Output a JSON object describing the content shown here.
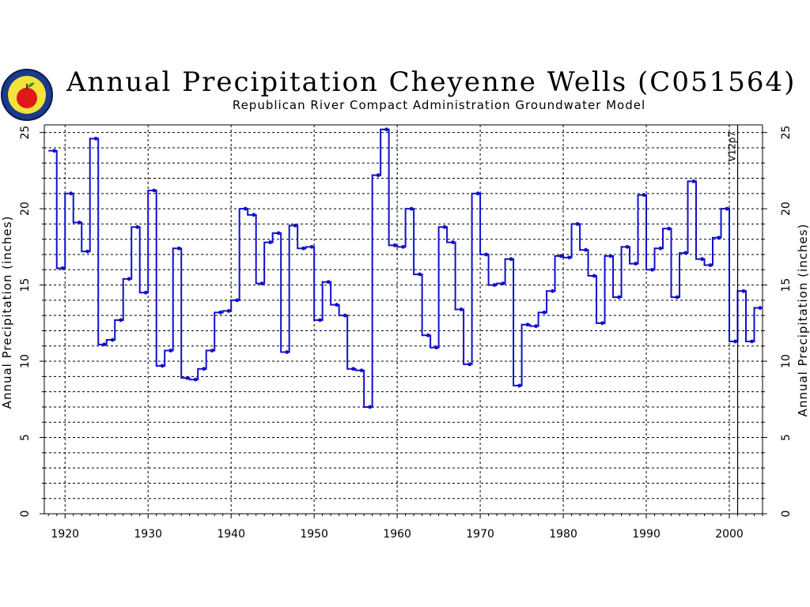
{
  "header": {
    "title": "Annual Precipitation Cheyenne Wells (C051564)",
    "subtitle": "Republican River Compact Administration Groundwater Model"
  },
  "colors": {
    "series": "#1010cc",
    "grid": "#000000",
    "axis": "#000000"
  },
  "chart_data": {
    "type": "line",
    "step": true,
    "title": "Annual Precipitation Cheyenne Wells (C051564)",
    "subtitle": "Republican River Compact Administration Groundwater Model",
    "xlabel": "",
    "ylabel": "Annual Precipitation (inches)",
    "ylabel_right": "Annual Precipitation (inches)",
    "xlim": [
      1917.5,
      2004
    ],
    "ylim": [
      0,
      25.5
    ],
    "xticks": [
      1920,
      1930,
      1940,
      1950,
      1960,
      1970,
      1980,
      1990,
      2000
    ],
    "yticks": [
      0,
      5,
      10,
      15,
      20,
      25
    ],
    "grid": true,
    "annotation": {
      "text": "V12p7",
      "x": 2001
    },
    "series": [
      {
        "years": [
          1918,
          1919,
          1920,
          1921,
          1922,
          1923,
          1924,
          1925,
          1926,
          1927,
          1928,
          1929,
          1930,
          1931,
          1932,
          1933,
          1934,
          1935,
          1936,
          1937,
          1938,
          1939,
          1940,
          1941,
          1942,
          1943,
          1944,
          1945,
          1946,
          1947,
          1948,
          1949,
          1950,
          1951,
          1952,
          1953,
          1954,
          1955,
          1956,
          1957,
          1958,
          1959,
          1960,
          1961,
          1962,
          1963,
          1964,
          1965,
          1966,
          1967,
          1968,
          1969,
          1970,
          1971,
          1972,
          1973,
          1974,
          1975,
          1976,
          1977,
          1978,
          1979,
          1980,
          1981,
          1982,
          1983,
          1984,
          1985,
          1986,
          1987,
          1988,
          1989,
          1990,
          1991,
          1992,
          1993,
          1994,
          1995,
          1996,
          1997,
          1998,
          1999,
          2000,
          2001,
          2002,
          2003
        ],
        "values": [
          23.8,
          16.1,
          21.0,
          19.1,
          17.2,
          24.6,
          11.1,
          11.4,
          12.7,
          15.4,
          18.8,
          14.5,
          21.2,
          9.7,
          10.7,
          17.4,
          8.9,
          8.8,
          9.5,
          10.7,
          13.2,
          13.3,
          14.0,
          20.0,
          19.6,
          15.1,
          17.8,
          18.4,
          10.6,
          18.9,
          17.4,
          17.5,
          12.7,
          15.2,
          13.7,
          13.0,
          9.5,
          9.4,
          7.0,
          22.2,
          25.2,
          17.6,
          17.5,
          20.0,
          15.7,
          11.7,
          10.9,
          18.8,
          17.8,
          13.4,
          9.8,
          21.0,
          17.0,
          15.0,
          15.1,
          16.7,
          8.4,
          12.4,
          12.3,
          13.2,
          14.6,
          16.9,
          16.8,
          19.0,
          17.3,
          15.6,
          12.5,
          16.9,
          14.2,
          17.5,
          16.4,
          20.9,
          16.0,
          17.4,
          18.7,
          14.2,
          17.1,
          21.8,
          16.7,
          16.3,
          18.1,
          20.0,
          11.3,
          14.6,
          11.3,
          13.5
        ]
      }
    ]
  }
}
